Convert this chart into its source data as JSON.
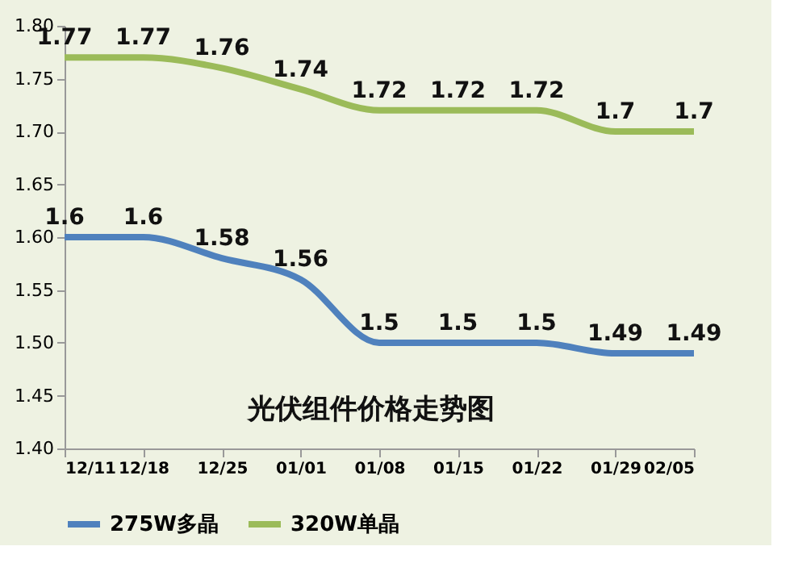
{
  "chart_data": {
    "type": "line",
    "title": "光伏组件价格走势图",
    "categories": [
      "12/11",
      "12/18",
      "12/25",
      "01/01",
      "01/08",
      "01/15",
      "01/22",
      "01/29",
      "02/05"
    ],
    "series": [
      {
        "name": "275W多晶",
        "color": "#4f81bd",
        "values": [
          1.6,
          1.6,
          1.58,
          1.56,
          1.5,
          1.5,
          1.5,
          1.49,
          1.49
        ]
      },
      {
        "name": "320W单晶",
        "color": "#9bbb59",
        "values": [
          1.77,
          1.77,
          1.76,
          1.74,
          1.72,
          1.72,
          1.72,
          1.7,
          1.7
        ]
      }
    ],
    "ylim": [
      1.4,
      1.8
    ],
    "yticks": [
      {
        "value": 1.4,
        "label": "1.40"
      },
      {
        "value": 1.45,
        "label": "1.45"
      },
      {
        "value": 1.5,
        "label": "1.50"
      },
      {
        "value": 1.55,
        "label": "1.55"
      },
      {
        "value": 1.6,
        "label": "1.60"
      },
      {
        "value": 1.65,
        "label": "1.65"
      },
      {
        "value": 1.7,
        "label": "1.70"
      },
      {
        "value": 1.75,
        "label": "1.75"
      },
      {
        "value": 1.8,
        "label": "1.80"
      }
    ],
    "data_labels": true,
    "grid": false,
    "legend": "bottom",
    "marker": "none",
    "line_style": "solid"
  }
}
